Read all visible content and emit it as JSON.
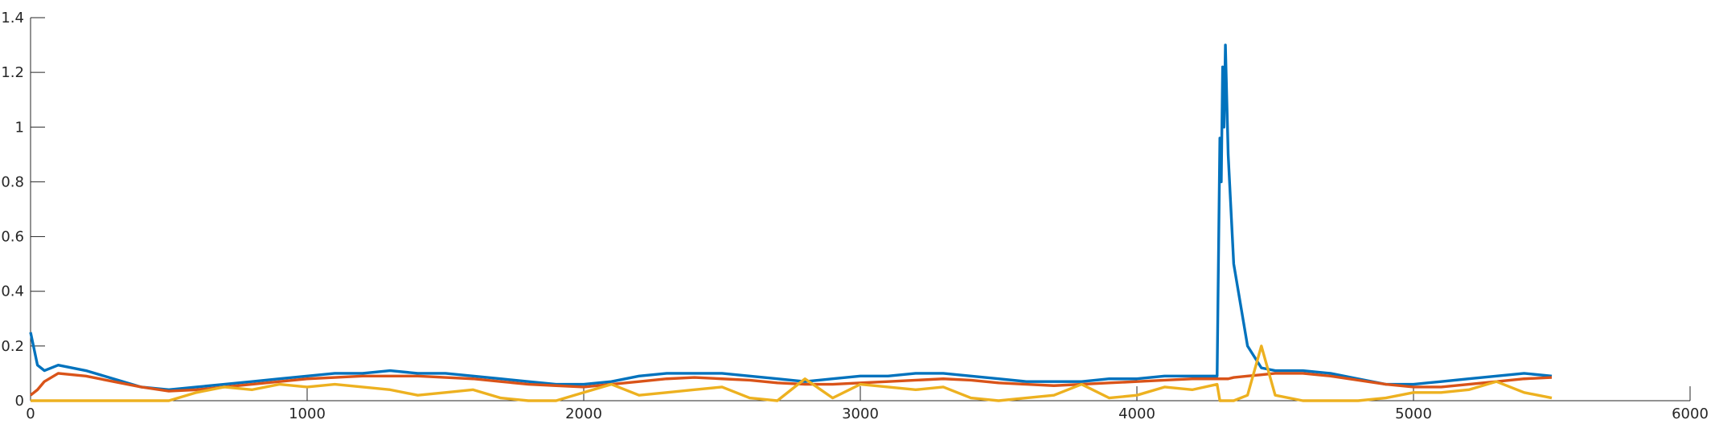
{
  "chart_data": {
    "type": "line",
    "x": [
      0,
      25,
      50,
      100,
      200,
      300,
      400,
      500,
      600,
      700,
      800,
      900,
      1000,
      1100,
      1200,
      1300,
      1400,
      1500,
      1600,
      1700,
      1800,
      1900,
      2000,
      2100,
      2200,
      2300,
      2400,
      2500,
      2600,
      2700,
      2800,
      2900,
      3000,
      3100,
      3200,
      3300,
      3400,
      3500,
      3600,
      3700,
      3800,
      3900,
      4000,
      4100,
      4200,
      4290,
      4300,
      4305,
      4310,
      4315,
      4320,
      4330,
      4350,
      4400,
      4450,
      4500,
      4600,
      4700,
      4800,
      4900,
      5000,
      5100,
      5200,
      5300,
      5400,
      5500
    ],
    "series": [
      {
        "color": "#0072bd",
        "values": [
          0.25,
          0.13,
          0.11,
          0.13,
          0.11,
          0.08,
          0.05,
          0.04,
          0.05,
          0.06,
          0.07,
          0.08,
          0.09,
          0.1,
          0.1,
          0.11,
          0.1,
          0.1,
          0.09,
          0.08,
          0.07,
          0.06,
          0.06,
          0.07,
          0.09,
          0.1,
          0.1,
          0.1,
          0.09,
          0.08,
          0.07,
          0.08,
          0.09,
          0.09,
          0.1,
          0.1,
          0.09,
          0.08,
          0.07,
          0.07,
          0.07,
          0.08,
          0.08,
          0.09,
          0.09,
          0.09,
          0.96,
          0.8,
          1.22,
          1.0,
          1.3,
          0.9,
          0.5,
          0.2,
          0.12,
          0.11,
          0.11,
          0.1,
          0.08,
          0.06,
          0.06,
          0.07,
          0.08,
          0.09,
          0.1,
          0.09
        ]
      },
      {
        "color": "#d95319",
        "values": [
          0.02,
          0.04,
          0.07,
          0.1,
          0.09,
          0.07,
          0.05,
          0.035,
          0.04,
          0.05,
          0.06,
          0.07,
          0.08,
          0.085,
          0.09,
          0.09,
          0.09,
          0.085,
          0.08,
          0.07,
          0.06,
          0.055,
          0.05,
          0.06,
          0.07,
          0.08,
          0.085,
          0.08,
          0.075,
          0.065,
          0.06,
          0.06,
          0.065,
          0.07,
          0.075,
          0.08,
          0.075,
          0.065,
          0.06,
          0.055,
          0.06,
          0.065,
          0.07,
          0.075,
          0.08,
          0.08,
          0.08,
          0.08,
          0.08,
          0.08,
          0.08,
          0.08,
          0.085,
          0.09,
          0.095,
          0.1,
          0.1,
          0.09,
          0.075,
          0.06,
          0.05,
          0.05,
          0.06,
          0.07,
          0.08,
          0.085
        ]
      },
      {
        "color": "#edb120",
        "values": [
          0,
          0,
          0,
          0,
          0,
          0,
          0,
          0,
          0.03,
          0.05,
          0.04,
          0.06,
          0.05,
          0.06,
          0.05,
          0.04,
          0.02,
          0.03,
          0.04,
          0.01,
          0,
          0,
          0.03,
          0.06,
          0.02,
          0.03,
          0.04,
          0.05,
          0.01,
          0,
          0.08,
          0.01,
          0.06,
          0.05,
          0.04,
          0.05,
          0.01,
          0,
          0.01,
          0.02,
          0.06,
          0.01,
          0.02,
          0.05,
          0.04,
          0.06,
          0,
          0,
          0,
          0,
          0,
          0,
          0,
          0.02,
          0.2,
          0.02,
          0,
          0,
          0,
          0.01,
          0.03,
          0.03,
          0.04,
          0.07,
          0.03,
          0.01
        ]
      }
    ],
    "xlim": [
      0,
      6000
    ],
    "xticks": [
      0,
      1000,
      2000,
      3000,
      4000,
      5000,
      6000
    ],
    "ylim": [
      0,
      1.4
    ],
    "yticks": [
      0,
      0.2,
      0.4,
      0.6,
      0.8,
      1,
      1.2,
      1.4
    ]
  }
}
